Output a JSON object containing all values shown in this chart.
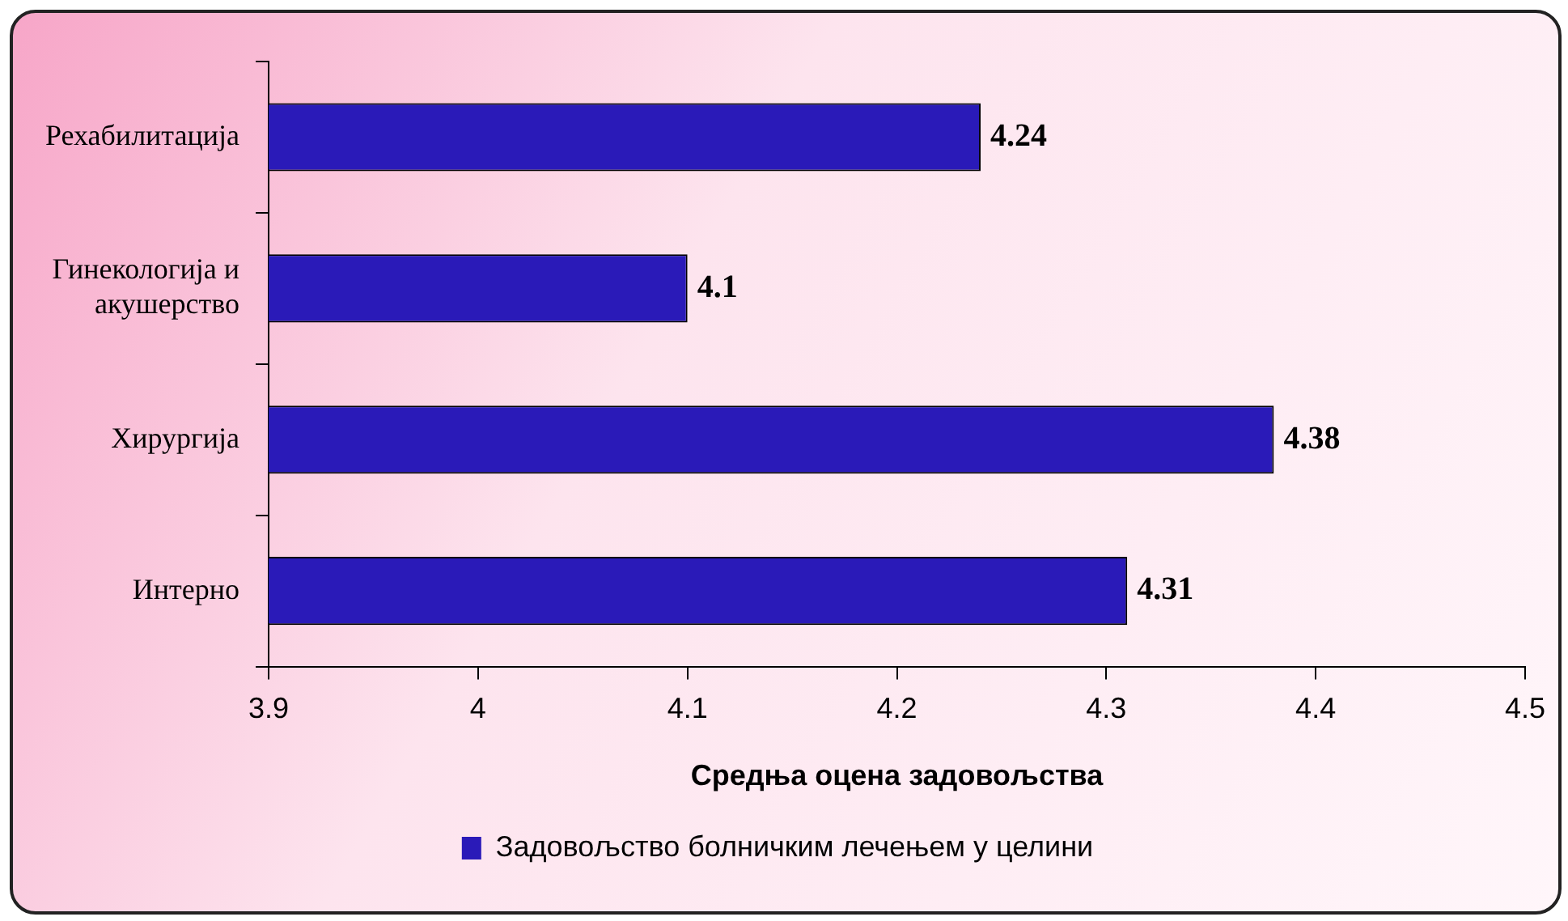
{
  "chart_data": {
    "type": "bar",
    "orientation": "horizontal",
    "categories": [
      "Рехабилитација",
      "Гинекологија и акушерство",
      "Хирургија",
      "Интерно"
    ],
    "series": [
      {
        "name": "Задовољство болничким лечењем у целини",
        "color": "#2a1ab8",
        "values": [
          4.24,
          4.1,
          4.38,
          4.31
        ]
      }
    ],
    "xlabel": "Средња оцена задовољства",
    "xlim": [
      3.9,
      4.5
    ],
    "xticks": [
      3.9,
      4,
      4.1,
      4.2,
      4.3,
      4.4,
      4.5
    ],
    "data_labels": true,
    "grid": false,
    "legend": "bottom"
  }
}
